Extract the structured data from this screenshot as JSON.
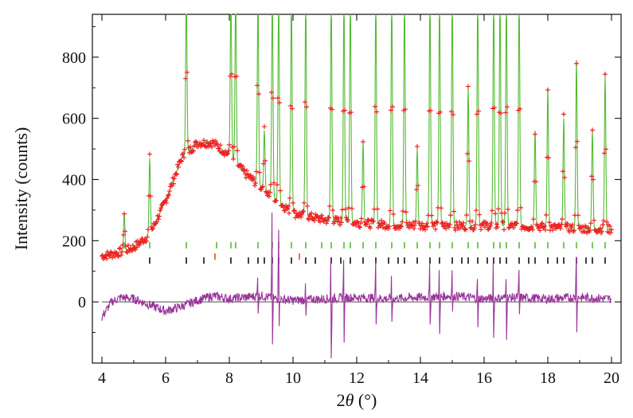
{
  "chart_data": {
    "type": "scatter",
    "title": "",
    "xlabel_prefix": "2",
    "xlabel_var": "θ",
    "xlabel_suffix": " (°)",
    "ylabel": "Intensity (counts)",
    "xlim": [
      3.7,
      20.3
    ],
    "ylim": [
      -200,
      940
    ],
    "xticks": [
      4,
      6,
      8,
      10,
      12,
      14,
      16,
      18,
      20
    ],
    "yticks": [
      0,
      200,
      400,
      600,
      800
    ],
    "grid": false,
    "legend": "none",
    "colors": {
      "observed": "#ee2222",
      "calculated": "#55bb33",
      "difference": "#993399",
      "reflections_phase1": "#55bb33",
      "reflections_phase2": "#111111",
      "reflections_phase3": "#ee4422",
      "zero_line": "#111111"
    },
    "background_curve": {
      "x": [
        4.0,
        4.5,
        5.0,
        5.5,
        6.0,
        6.5,
        7.0,
        7.5,
        8.0,
        8.5,
        9.0,
        9.5,
        10.0,
        11.0,
        12.0,
        13.0,
        14.0,
        15.0,
        16.0,
        17.0,
        18.0,
        19.0,
        20.0
      ],
      "y": [
        150,
        160,
        178,
        220,
        330,
        470,
        520,
        520,
        480,
        420,
        375,
        330,
        290,
        268,
        258,
        252,
        250,
        248,
        250,
        248,
        244,
        240,
        238
      ]
    },
    "peaks": [
      {
        "x": 4.7,
        "y": 290
      },
      {
        "x": 5.5,
        "y": 470
      },
      {
        "x": 6.65,
        "y": 1000
      },
      {
        "x": 8.05,
        "y": 1000
      },
      {
        "x": 8.2,
        "y": 1000
      },
      {
        "x": 8.9,
        "y": 1000
      },
      {
        "x": 9.1,
        "y": 560
      },
      {
        "x": 9.35,
        "y": 1000
      },
      {
        "x": 9.55,
        "y": 1000
      },
      {
        "x": 9.95,
        "y": 1000
      },
      {
        "x": 10.4,
        "y": 1000
      },
      {
        "x": 11.2,
        "y": 1000
      },
      {
        "x": 11.6,
        "y": 1000
      },
      {
        "x": 11.8,
        "y": 1000
      },
      {
        "x": 12.2,
        "y": 520
      },
      {
        "x": 12.6,
        "y": 1000
      },
      {
        "x": 13.1,
        "y": 1000
      },
      {
        "x": 13.5,
        "y": 1000
      },
      {
        "x": 13.9,
        "y": 500
      },
      {
        "x": 14.3,
        "y": 1000
      },
      {
        "x": 14.6,
        "y": 1000
      },
      {
        "x": 15.0,
        "y": 1000
      },
      {
        "x": 15.5,
        "y": 700
      },
      {
        "x": 15.8,
        "y": 1000
      },
      {
        "x": 16.3,
        "y": 1000
      },
      {
        "x": 16.5,
        "y": 1000
      },
      {
        "x": 16.7,
        "y": 1000
      },
      {
        "x": 17.1,
        "y": 1000
      },
      {
        "x": 17.6,
        "y": 560
      },
      {
        "x": 18.0,
        "y": 700
      },
      {
        "x": 18.5,
        "y": 600
      },
      {
        "x": 18.9,
        "y": 790
      },
      {
        "x": 19.4,
        "y": 560
      },
      {
        "x": 19.8,
        "y": 740
      }
    ],
    "reflection_rows": [
      {
        "name": "",
        "y": 185,
        "color": "#55bb33",
        "x": [
          4.7,
          5.5,
          6.65,
          7.6,
          8.05,
          8.2,
          8.9,
          9.35,
          9.55,
          9.95,
          10.4,
          10.9,
          11.2,
          11.6,
          11.8,
          12.2,
          12.6,
          13.1,
          13.5,
          13.9,
          14.3,
          14.6,
          15.0,
          15.5,
          15.8,
          16.3,
          16.5,
          16.7,
          17.1,
          17.6,
          18.0,
          18.5,
          18.9,
          19.4,
          19.8
        ]
      },
      {
        "name": "",
        "y": 135,
        "color": "#111111",
        "x": [
          5.5,
          6.65,
          7.2,
          8.05,
          8.6,
          8.9,
          9.1,
          9.35,
          9.55,
          9.95,
          10.4,
          10.7,
          11.2,
          11.5,
          11.8,
          12.2,
          12.6,
          13.0,
          13.3,
          13.5,
          13.9,
          14.3,
          14.6,
          15.0,
          15.3,
          15.5,
          15.8,
          16.1,
          16.3,
          16.5,
          16.7,
          17.1,
          17.4,
          17.6,
          18.0,
          18.3,
          18.5,
          18.9,
          19.2,
          19.4,
          19.8
        ]
      },
      {
        "name": "",
        "y": 148,
        "color": "#ee4422",
        "x": [
          7.55,
          10.2
        ]
      }
    ],
    "difference_curve": {
      "x": [
        4.0,
        4.3,
        4.6,
        5.0,
        5.5,
        6.0,
        6.5,
        7.0,
        7.5,
        8.0,
        8.5,
        9.0,
        9.5,
        10.0,
        11.0,
        12.0,
        13.0,
        14.0,
        15.0,
        16.0,
        17.0,
        18.0,
        19.0,
        20.0
      ],
      "y": [
        -50,
        0,
        15,
        10,
        -10,
        -30,
        -15,
        5,
        20,
        10,
        15,
        20,
        10,
        5,
        10,
        15,
        10,
        15,
        20,
        10,
        15,
        10,
        15,
        10
      ]
    },
    "difference_spikes": [
      {
        "x": 9.35,
        "hi": 430,
        "lo": -200
      },
      {
        "x": 9.55,
        "hi": 240,
        "lo": -200
      },
      {
        "x": 11.2,
        "hi": 250,
        "lo": -200
      },
      {
        "x": 11.6,
        "hi": 200,
        "lo": -160
      },
      {
        "x": 12.6,
        "hi": 130,
        "lo": -120
      },
      {
        "x": 14.3,
        "hi": 140,
        "lo": -110
      },
      {
        "x": 14.6,
        "hi": 120,
        "lo": -160
      },
      {
        "x": 15.8,
        "hi": 100,
        "lo": -120
      },
      {
        "x": 16.3,
        "hi": 260,
        "lo": -130
      },
      {
        "x": 16.7,
        "hi": 110,
        "lo": -150
      },
      {
        "x": 17.1,
        "hi": 100,
        "lo": -80
      },
      {
        "x": 18.9,
        "hi": 170,
        "lo": -150
      },
      {
        "x": 8.9,
        "hi": 110,
        "lo": -60
      },
      {
        "x": 10.4,
        "hi": 90,
        "lo": -80
      },
      {
        "x": 13.1,
        "hi": 90,
        "lo": -90
      },
      {
        "x": 15.0,
        "hi": 90,
        "lo": -70
      }
    ]
  }
}
